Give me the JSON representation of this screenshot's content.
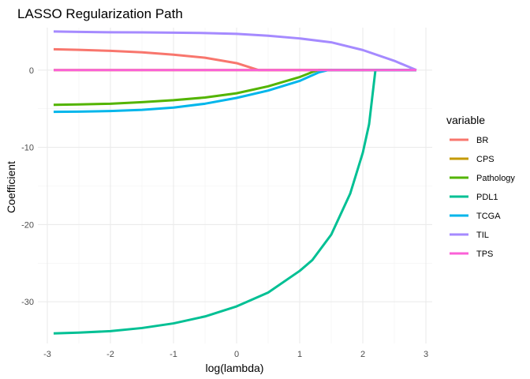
{
  "chart_data": {
    "type": "line",
    "title": "LASSO Regularization Path",
    "xlabel": "log(lambda)",
    "ylabel": "Coefficient",
    "xlim": [
      -3.15,
      3.1
    ],
    "ylim": [
      -35.4,
      5.5
    ],
    "xticks": [
      -3,
      -2,
      -1,
      0,
      1,
      2,
      3
    ],
    "yticks": [
      0,
      -10,
      -20,
      -30
    ],
    "grid": true,
    "legend_title": "variable",
    "legend_position": "right",
    "series": [
      {
        "name": "BR",
        "color": "#F8766D",
        "points": [
          [
            -2.9,
            2.7
          ],
          [
            -2.5,
            2.62
          ],
          [
            -2.0,
            2.5
          ],
          [
            -1.5,
            2.3
          ],
          [
            -1.0,
            2.0
          ],
          [
            -0.5,
            1.6
          ],
          [
            0.0,
            0.9
          ],
          [
            0.35,
            0.0
          ],
          [
            2.85,
            0.0
          ]
        ]
      },
      {
        "name": "CPS",
        "color": "#C49A00",
        "points": [
          [
            -2.9,
            0.0
          ],
          [
            2.85,
            0.0
          ]
        ]
      },
      {
        "name": "Pathology",
        "color": "#53B400",
        "points": [
          [
            -2.9,
            -4.5
          ],
          [
            -2.5,
            -4.45
          ],
          [
            -2.0,
            -4.35
          ],
          [
            -1.5,
            -4.15
          ],
          [
            -1.0,
            -3.9
          ],
          [
            -0.5,
            -3.55
          ],
          [
            0.0,
            -3.0
          ],
          [
            0.5,
            -2.1
          ],
          [
            1.0,
            -0.9
          ],
          [
            1.2,
            -0.25
          ],
          [
            1.3,
            0.0
          ],
          [
            2.85,
            0.0
          ]
        ]
      },
      {
        "name": "PDL1",
        "color": "#00C094",
        "points": [
          [
            -2.9,
            -34.1
          ],
          [
            -2.5,
            -34.0
          ],
          [
            -2.0,
            -33.8
          ],
          [
            -1.5,
            -33.4
          ],
          [
            -1.0,
            -32.8
          ],
          [
            -0.5,
            -31.9
          ],
          [
            0.0,
            -30.6
          ],
          [
            0.5,
            -28.8
          ],
          [
            1.0,
            -26.0
          ],
          [
            1.2,
            -24.6
          ],
          [
            1.5,
            -21.3
          ],
          [
            1.8,
            -16.0
          ],
          [
            2.0,
            -10.7
          ],
          [
            2.1,
            -7.0
          ],
          [
            2.2,
            0.0
          ],
          [
            2.85,
            0.0
          ]
        ]
      },
      {
        "name": "TCGA",
        "color": "#00B6EB",
        "points": [
          [
            -2.9,
            -5.4
          ],
          [
            -2.5,
            -5.38
          ],
          [
            -2.0,
            -5.3
          ],
          [
            -1.5,
            -5.15
          ],
          [
            -1.0,
            -4.85
          ],
          [
            -0.5,
            -4.35
          ],
          [
            0.0,
            -3.6
          ],
          [
            0.5,
            -2.65
          ],
          [
            1.0,
            -1.4
          ],
          [
            1.3,
            -0.3
          ],
          [
            1.45,
            0.0
          ],
          [
            2.85,
            0.0
          ]
        ]
      },
      {
        "name": "TIL",
        "color": "#A58AFF",
        "points": [
          [
            -2.9,
            5.0
          ],
          [
            -2.5,
            4.95
          ],
          [
            -2.0,
            4.9
          ],
          [
            -1.5,
            4.88
          ],
          [
            -1.0,
            4.85
          ],
          [
            -0.5,
            4.8
          ],
          [
            0.0,
            4.7
          ],
          [
            0.5,
            4.45
          ],
          [
            1.0,
            4.1
          ],
          [
            1.5,
            3.6
          ],
          [
            2.0,
            2.6
          ],
          [
            2.5,
            1.2
          ],
          [
            2.85,
            0.0
          ]
        ]
      },
      {
        "name": "TPS",
        "color": "#FB61D7",
        "points": [
          [
            -2.9,
            0.0
          ],
          [
            2.85,
            0.0
          ]
        ]
      }
    ]
  }
}
